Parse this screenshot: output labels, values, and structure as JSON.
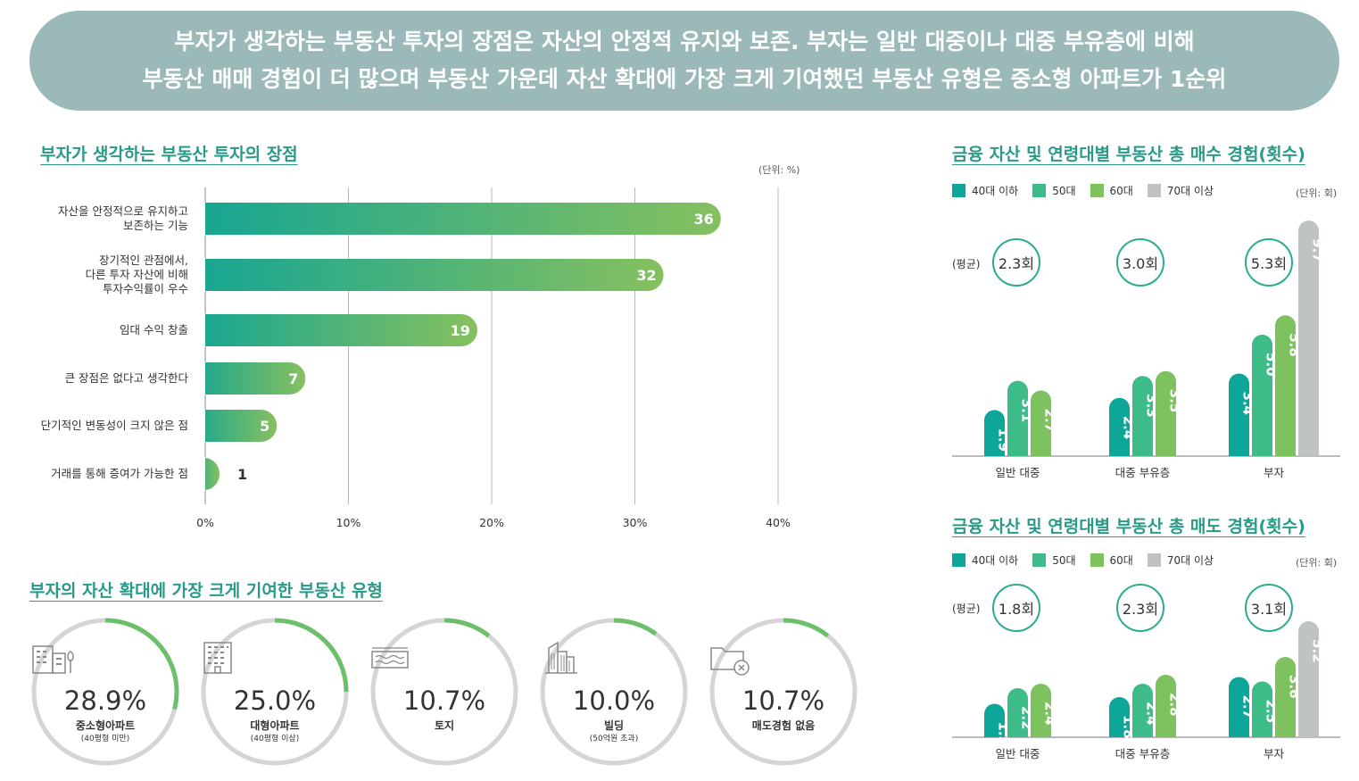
{
  "banner": {
    "line1": "부자가 생각하는 부동산 투자의 장점은 자산의 안정적 유지와 보존. 부자는 일반 대중이나 대중 부유층에 비해",
    "line2": "부동산 매매 경험이 더 많으며 부동산 가운데 자산 확대에 가장 크게 기여했던 부동산 유형은 중소형 아파트가 1순위"
  },
  "colors": {
    "banner": "#9ab9b8",
    "title": "#2a9a88",
    "age40": "#0ea698",
    "age50": "#3dbc8a",
    "age60": "#7dc25f",
    "age70": "#c0c3c3",
    "donut_track": "#d5d5d5",
    "donut_arc": "#6cc06a"
  },
  "advantages": {
    "title": "부자가 생각하는 부동산 투자의 장점",
    "unit": "(단위: %)",
    "chart_data": {
      "type": "bar",
      "orientation": "horizontal",
      "categories": [
        "자산을 안정적으로 유지하고\n보존하는 기능",
        "장기적인 관점에서,\n다른 투자 자산에 비해\n투자수익률이 우수",
        "임대 수익 창출",
        "큰 장점은 없다고 생각한다",
        "단기적인 변동성이 크지 않은 점",
        "거래를 통해 증여가 가능한 점"
      ],
      "values": [
        36,
        32,
        19,
        7,
        5,
        1
      ],
      "xlim": [
        0,
        40
      ],
      "xticks": [
        "0%",
        "10%",
        "20%",
        "30%",
        "40%"
      ],
      "grid": true
    }
  },
  "legend": {
    "items": [
      "40대 이하",
      "50대",
      "60대",
      "70대 이상"
    ]
  },
  "buy": {
    "title": "금융 자산 및 연령대별 부동산 총 매수 경험(횟수)",
    "unit": "(단위: 회)",
    "avg_label": "(평균)",
    "averages": [
      "2.3회",
      "3.0회",
      "5.3회"
    ],
    "chart_data": {
      "type": "bar",
      "categories": [
        "일반 대중",
        "대중 부유층",
        "부자"
      ],
      "series": [
        {
          "name": "40대 이하",
          "values": [
            1.9,
            2.4,
            3.4
          ]
        },
        {
          "name": "50대",
          "values": [
            3.1,
            3.3,
            5.0
          ]
        },
        {
          "name": "60대",
          "values": [
            2.7,
            3.5,
            5.8
          ]
        },
        {
          "name": "70대 이상",
          "values": [
            null,
            null,
            9.7
          ]
        }
      ],
      "ylim": [
        0,
        10
      ]
    }
  },
  "sell": {
    "title": "금융 자산 및 연령대별 부동산 총 매도 경험(횟수)",
    "unit": "(단위: 회)",
    "avg_label": "(평균)",
    "averages": [
      "1.8회",
      "2.3회",
      "3.1회"
    ],
    "chart_data": {
      "type": "bar",
      "categories": [
        "일반 대중",
        "대중 부유층",
        "부자"
      ],
      "series": [
        {
          "name": "40대 이하",
          "values": [
            1.5,
            1.8,
            2.7
          ]
        },
        {
          "name": "50대",
          "values": [
            2.2,
            2.4,
            2.5
          ]
        },
        {
          "name": "60대",
          "values": [
            2.4,
            2.8,
            3.6
          ]
        },
        {
          "name": "70대 이상",
          "values": [
            null,
            null,
            5.2
          ]
        }
      ],
      "ylim": [
        0,
        5.6
      ]
    }
  },
  "property_types": {
    "title": "부자의 자산 확대에 가장 크게 기여한 부동산 유형",
    "chart_data": {
      "type": "pie",
      "items": [
        {
          "label": "중소형아파트",
          "sub": "(40평형 미만)",
          "value": 28.9,
          "value_text": "28.9%",
          "icon": "apartment-small-icon"
        },
        {
          "label": "대형아파트",
          "sub": "(40평형 이상)",
          "value": 25.0,
          "value_text": "25.0%",
          "icon": "apartment-large-icon"
        },
        {
          "label": "토지",
          "sub": "",
          "value": 10.7,
          "value_text": "10.7%",
          "icon": "land-icon"
        },
        {
          "label": "빌딩",
          "sub": "(50억원 초과)",
          "value": 10.0,
          "value_text": "10.0%",
          "icon": "building-icon"
        },
        {
          "label": "매도경험 없음",
          "sub": "",
          "value": 10.7,
          "value_text": "10.7%",
          "icon": "folder-x-icon"
        }
      ]
    }
  }
}
